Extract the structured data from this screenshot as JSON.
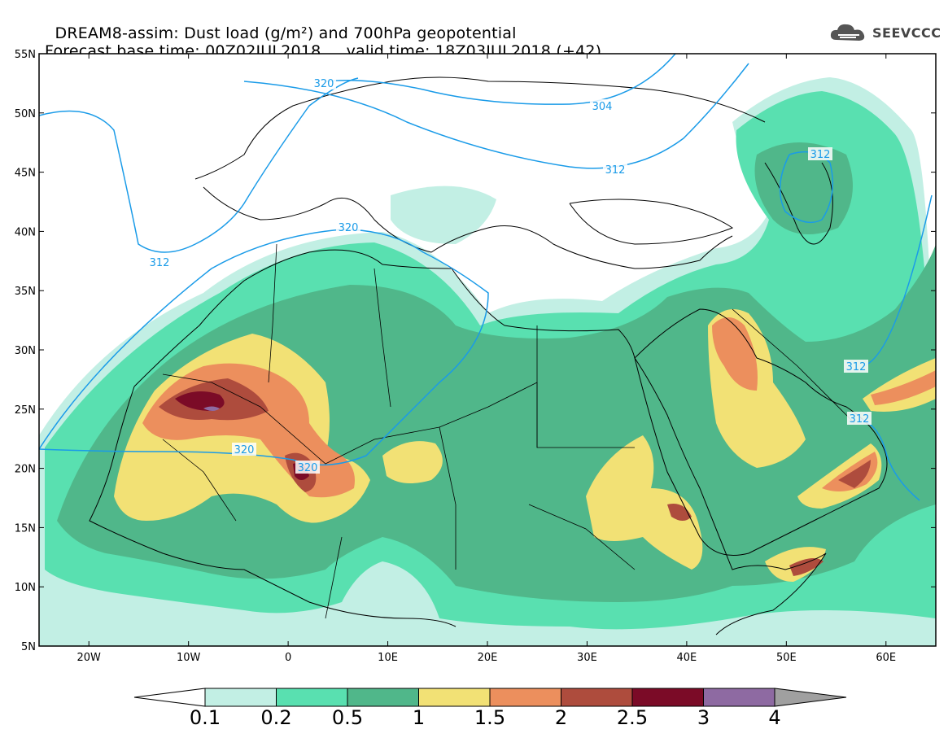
{
  "header": {
    "title_line1": "DREAM8-assim: Dust load (g/m²) and 700hPa geopotential",
    "title_line2_left": "Forecast base time: 00Z02JUL2018",
    "title_line2_right": "valid time: 18Z03JUL2018 (+42)"
  },
  "logo": {
    "text": "SEEVCCC",
    "icon": "cloud-icon"
  },
  "map": {
    "lat_labels": [
      "55N",
      "50N",
      "45N",
      "40N",
      "35N",
      "30N",
      "25N",
      "20N",
      "15N",
      "10N",
      "5N"
    ],
    "lon_labels": [
      "20W",
      "10W",
      "0",
      "10E",
      "20E",
      "30E",
      "40E",
      "50E",
      "60E"
    ],
    "contour_labels": [
      "304",
      "312",
      "312",
      "312",
      "312",
      "312",
      "320",
      "320",
      "320",
      "320"
    ],
    "contour_color": "#1a9be8"
  },
  "colorbar": {
    "labels": [
      "0.1",
      "0.2",
      "0.5",
      "1",
      "1.5",
      "2",
      "2.5",
      "3",
      "4"
    ],
    "colors": [
      "#c2efe4",
      "#59e0b0",
      "#50b78a",
      "#f2e175",
      "#ec8f5d",
      "#ae4c3d",
      "#7b0b27",
      "#8e6aa2",
      "#a0a0a0"
    ]
  }
}
